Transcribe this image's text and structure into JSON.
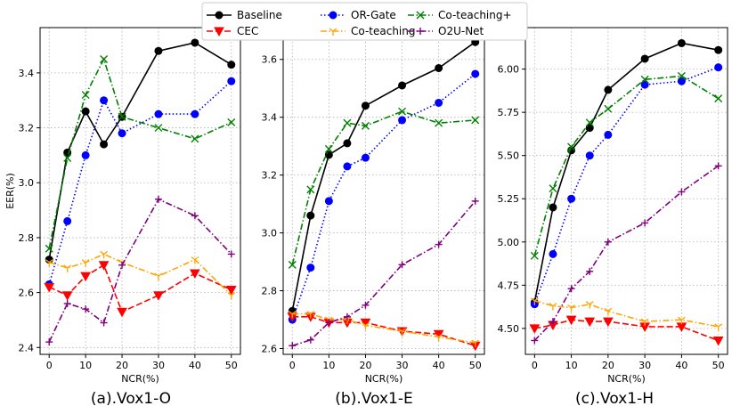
{
  "chart_data": {
    "type": "line",
    "legend": {
      "position": "top-center",
      "entries": [
        "Baseline",
        "CEC",
        "OR-Gate",
        "Co-teaching",
        "Co-teaching+",
        "O2U-Net"
      ]
    },
    "series_styles": {
      "Baseline": {
        "color": "#000000",
        "marker": "circle",
        "dash": "solid"
      },
      "CEC": {
        "color": "#ff0000",
        "marker": "triangle-down",
        "dash": "dashed"
      },
      "OR-Gate": {
        "color": "#0000ff",
        "marker": "circle",
        "dash": "dotted"
      },
      "Co-teaching": {
        "color": "#ffa500",
        "marker": "tri-down",
        "dash": "dashdot"
      },
      "Co-teaching+": {
        "color": "#008000",
        "marker": "x",
        "dash": "dashdot"
      },
      "O2U-Net": {
        "color": "#800080",
        "marker": "plus",
        "dash": "dashdot"
      }
    },
    "panels": [
      {
        "caption": "(a).Vox1-O",
        "xlabel": "NCR(%)",
        "ylabel": "EER(%)",
        "x": [
          0,
          5,
          10,
          15,
          20,
          30,
          40,
          50
        ],
        "xticks": [
          "0",
          "10",
          "20",
          "30",
          "40",
          "50"
        ],
        "xlim": [
          -2.5,
          52.5
        ],
        "ylim": [
          2.375,
          3.565
        ],
        "yticks": [
          "2.4",
          "2.6",
          "2.8",
          "3.0",
          "3.2",
          "3.4"
        ],
        "series": [
          {
            "name": "Baseline",
            "values": [
              2.72,
              3.11,
              3.26,
              3.14,
              3.24,
              3.48,
              3.51,
              3.43
            ]
          },
          {
            "name": "OR-Gate",
            "values": [
              2.63,
              2.86,
              3.1,
              3.3,
              3.18,
              3.25,
              3.25,
              3.37
            ]
          },
          {
            "name": "Co-teaching+",
            "values": [
              2.76,
              3.09,
              3.32,
              3.45,
              3.24,
              3.2,
              3.16,
              3.22
            ]
          },
          {
            "name": "CEC",
            "values": [
              2.62,
              2.59,
              2.66,
              2.7,
              2.53,
              2.59,
              2.67,
              2.61
            ]
          },
          {
            "name": "Co-teaching",
            "values": [
              2.71,
              2.69,
              2.71,
              2.74,
              2.71,
              2.66,
              2.72,
              2.59
            ]
          },
          {
            "name": "O2U-Net",
            "values": [
              2.42,
              2.56,
              2.54,
              2.49,
              2.7,
              2.94,
              2.88,
              2.74
            ]
          }
        ]
      },
      {
        "caption": "(b).Vox1-E",
        "xlabel": "NCR(%)",
        "ylabel": "",
        "x": [
          0,
          5,
          10,
          15,
          20,
          30,
          40,
          50
        ],
        "xticks": [
          "0",
          "10",
          "20",
          "30",
          "40",
          "50"
        ],
        "xlim": [
          -2.5,
          52.5
        ],
        "ylim": [
          2.58,
          3.71
        ],
        "yticks": [
          "2.6",
          "2.8",
          "3.0",
          "3.2",
          "3.4",
          "3.6"
        ],
        "series": [
          {
            "name": "Baseline",
            "values": [
              2.73,
              3.06,
              3.27,
              3.31,
              3.44,
              3.51,
              3.57,
              3.66
            ]
          },
          {
            "name": "OR-Gate",
            "values": [
              2.7,
              2.88,
              3.11,
              3.23,
              3.26,
              3.39,
              3.45,
              3.55
            ]
          },
          {
            "name": "Co-teaching+",
            "values": [
              2.89,
              3.15,
              3.29,
              3.38,
              3.37,
              3.42,
              3.38,
              3.39
            ]
          },
          {
            "name": "CEC",
            "values": [
              2.71,
              2.71,
              2.69,
              2.69,
              2.69,
              2.66,
              2.65,
              2.61
            ]
          },
          {
            "name": "Co-teaching",
            "values": [
              2.72,
              2.72,
              2.7,
              2.7,
              2.68,
              2.66,
              2.64,
              2.62
            ]
          },
          {
            "name": "O2U-Net",
            "values": [
              2.61,
              2.63,
              2.69,
              2.71,
              2.75,
              2.89,
              2.96,
              3.11
            ]
          }
        ]
      },
      {
        "caption": "(c).Vox1-H",
        "xlabel": "NCR(%)",
        "ylabel": "",
        "x": [
          0,
          5,
          10,
          15,
          20,
          30,
          40,
          50
        ],
        "xticks": [
          "0",
          "10",
          "20",
          "30",
          "40",
          "50"
        ],
        "xlim": [
          -2.5,
          52.5
        ],
        "ylim": [
          4.35,
          6.24
        ],
        "yticks": [
          "4.50",
          "4.75",
          "5.00",
          "5.25",
          "5.50",
          "5.75",
          "6.00"
        ],
        "series": [
          {
            "name": "Baseline",
            "values": [
              4.65,
              5.2,
              5.53,
              5.66,
              5.88,
              6.06,
              6.15,
              6.11
            ]
          },
          {
            "name": "OR-Gate",
            "values": [
              4.64,
              4.93,
              5.25,
              5.5,
              5.62,
              5.91,
              5.93,
              6.01
            ]
          },
          {
            "name": "Co-teaching+",
            "values": [
              4.92,
              5.31,
              5.55,
              5.69,
              5.77,
              5.94,
              5.96,
              5.83
            ]
          },
          {
            "name": "CEC",
            "values": [
              4.5,
              4.52,
              4.55,
              4.54,
              4.54,
              4.51,
              4.51,
              4.43
            ]
          },
          {
            "name": "Co-teaching",
            "values": [
              4.66,
              4.63,
              4.62,
              4.64,
              4.6,
              4.54,
              4.55,
              4.51
            ]
          },
          {
            "name": "O2U-Net",
            "values": [
              4.43,
              4.54,
              4.73,
              4.83,
              5.0,
              5.11,
              5.29,
              5.44
            ]
          }
        ]
      }
    ]
  }
}
